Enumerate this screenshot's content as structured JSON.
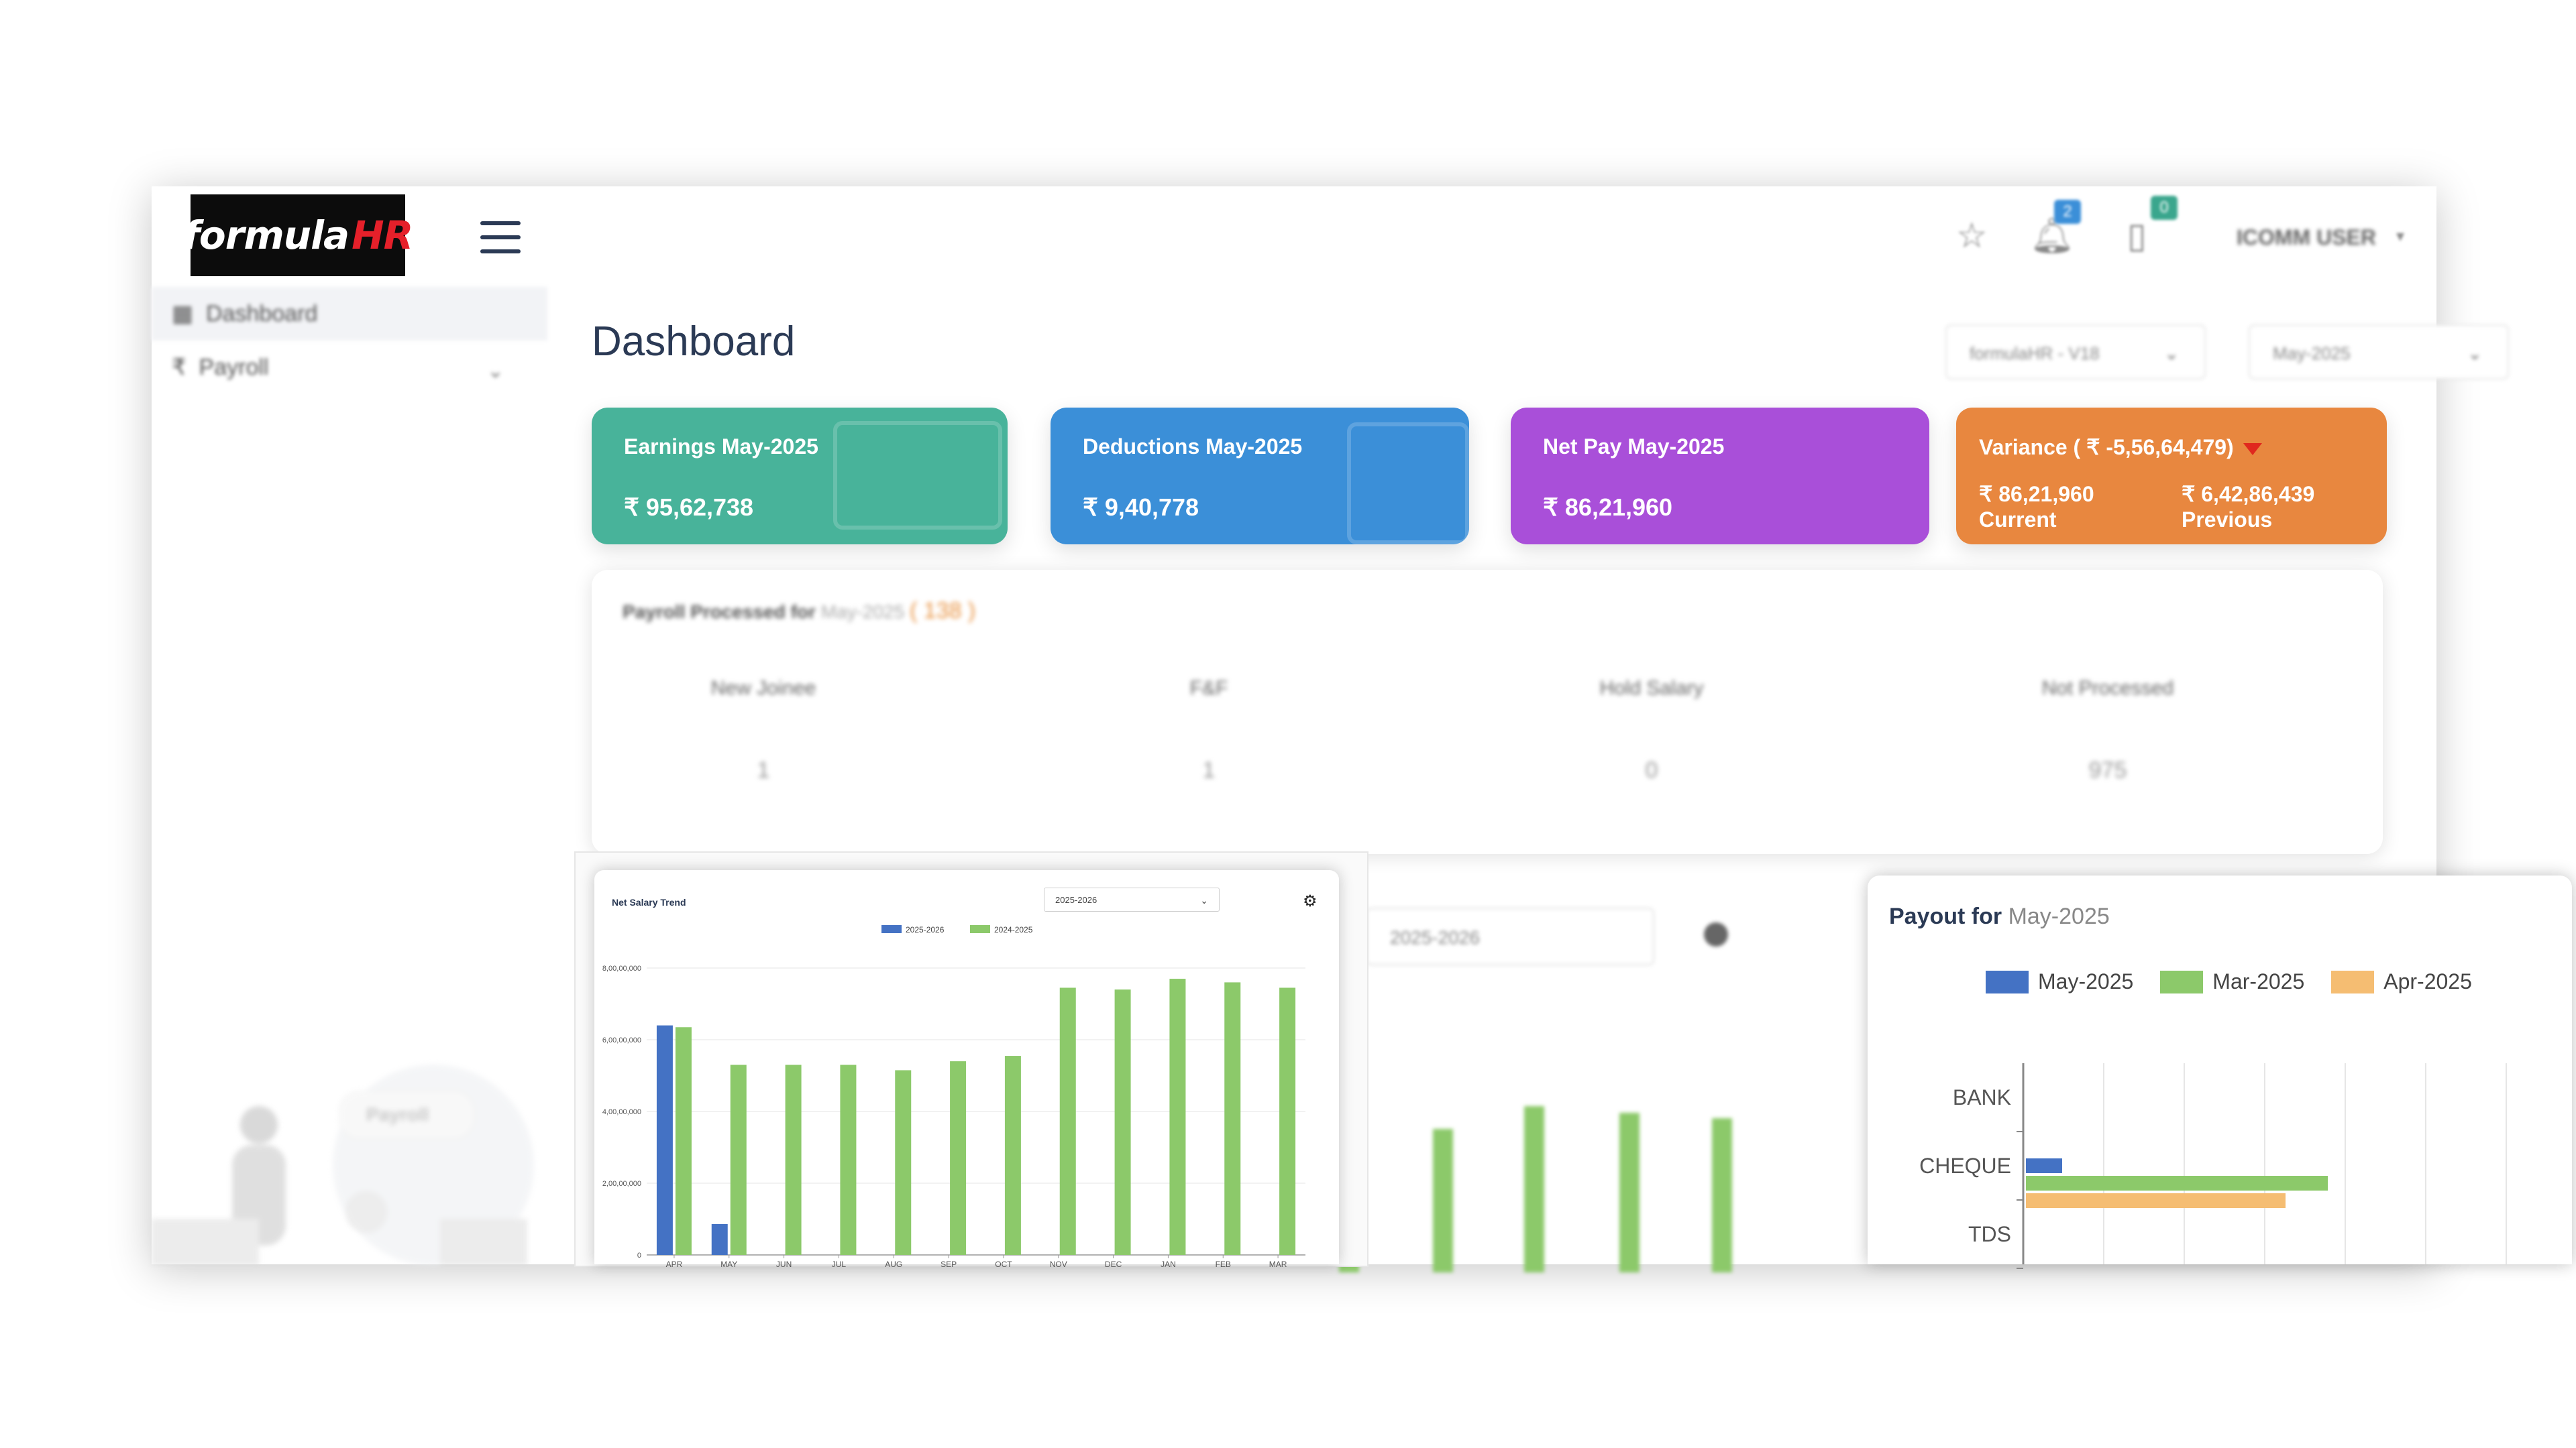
{
  "header": {
    "logo_main": "formula",
    "logo_accent": "HR",
    "notif_count": "2",
    "doc_count": "0",
    "user": "ICOMM USER"
  },
  "sidebar": {
    "items": [
      {
        "label": "Dashboard",
        "icon": "grid-icon"
      },
      {
        "label": "Payroll",
        "icon": "rupee-icon"
      }
    ],
    "illustration_label": "Payroll"
  },
  "main": {
    "title": "Dashboard",
    "filters": {
      "company": "formulaHR - V18",
      "month": "May-2025"
    }
  },
  "cards": [
    {
      "title": "Earnings May-2025",
      "value": "₹ 95,62,738",
      "color": "#48b39a"
    },
    {
      "title": "Deductions May-2025",
      "value": "₹ 9,40,778",
      "color": "#3b8fd8"
    },
    {
      "title": "Net Pay May-2025",
      "value": "₹ 86,21,960",
      "color": "#a94fd9"
    },
    {
      "title": "Variance ( ₹ -5,56,64,479)",
      "current_value": "₹ 86,21,960",
      "current_label": "Current",
      "previous_value": "₹ 6,42,86,439",
      "previous_label": "Previous",
      "color": "#e8873f"
    }
  ],
  "processed": {
    "title": "Payroll Processed for",
    "month": "May-2025",
    "count": "( 138 )",
    "stats": [
      {
        "label": "New Joinee",
        "value": "1"
      },
      {
        "label": "F&F",
        "value": "1"
      },
      {
        "label": "Hold Salary",
        "value": "0"
      },
      {
        "label": "Not Processed",
        "value": "975"
      }
    ]
  },
  "background_chart": {
    "select": "2025-2026"
  },
  "trend": {
    "title": "Net Salary Trend",
    "select": "2025-2026"
  },
  "payout": {
    "title": "Payout for",
    "month": "May-2025"
  },
  "colors": {
    "blue": "#4472c4",
    "green": "#8cc96a",
    "orange": "#f5bd72"
  },
  "chart_data": [
    {
      "type": "bar",
      "title": "Net Salary Trend",
      "categories": [
        "APR",
        "MAY",
        "JUN",
        "JUL",
        "AUG",
        "SEP",
        "OCT",
        "NOV",
        "DEC",
        "JAN",
        "FEB",
        "MAR"
      ],
      "series": [
        {
          "name": "2025-2026",
          "color": "#4472c4",
          "values": [
            64000000,
            8600000,
            null,
            null,
            null,
            null,
            null,
            null,
            null,
            null,
            null,
            null
          ]
        },
        {
          "name": "2024-2025",
          "color": "#8cc96a",
          "values": [
            63500000,
            53000000,
            53000000,
            53000000,
            51500000,
            54000000,
            55500000,
            74500000,
            74000000,
            77000000,
            76000000,
            74500000
          ]
        }
      ],
      "yticks": [
        "0",
        "2,00,00,000",
        "4,00,00,000",
        "6,00,00,000",
        "8,00,00,000"
      ],
      "ylim": [
        0,
        80000000
      ],
      "legend": "top"
    },
    {
      "type": "bar",
      "orientation": "horizontal",
      "title": "Payout for May-2025",
      "categories": [
        "BANK",
        "CHEQUE",
        "TDS"
      ],
      "series": [
        {
          "name": "May-2025",
          "color": "#4472c4",
          "values": [
            0,
            12,
            0
          ]
        },
        {
          "name": "Mar-2025",
          "color": "#8cc96a",
          "values": [
            0,
            100,
            0
          ]
        },
        {
          "name": "Apr-2025",
          "color": "#f5bd72",
          "values": [
            0,
            86,
            0
          ]
        }
      ],
      "legend": "top"
    }
  ]
}
